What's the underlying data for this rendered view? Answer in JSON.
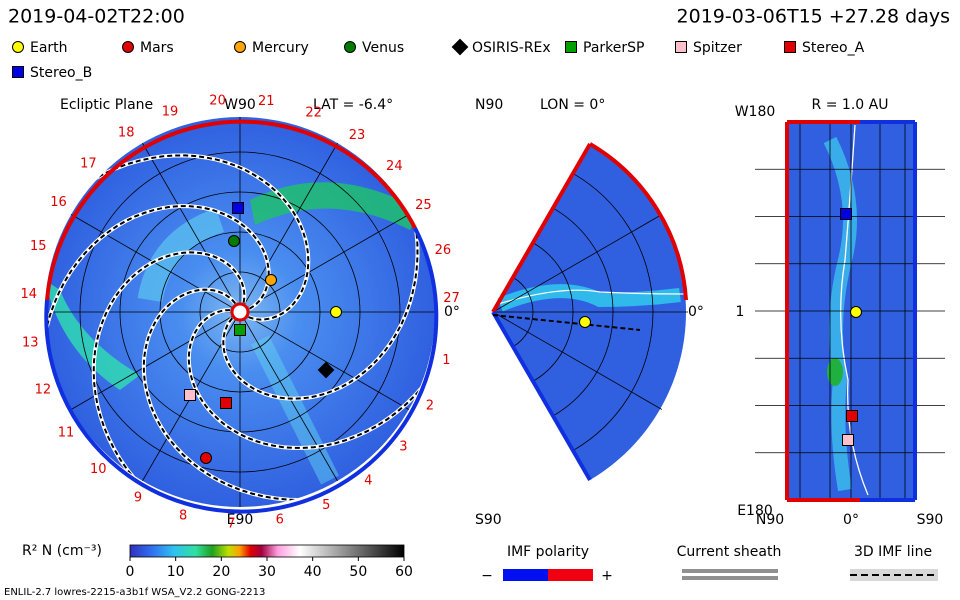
{
  "header": {
    "timestamp": "2019-04-02T22:00",
    "run_time": "2019-03-06T15 +27.28 days"
  },
  "legend": [
    {
      "name": "Earth",
      "color": "#ffff00",
      "shape": "circle"
    },
    {
      "name": "Mars",
      "color": "#e00000",
      "shape": "circle"
    },
    {
      "name": "Mercury",
      "color": "#ffa500",
      "shape": "circle"
    },
    {
      "name": "Venus",
      "color": "#007a00",
      "shape": "circle"
    },
    {
      "name": "OSIRIS-REx",
      "color": "#000000",
      "shape": "diamond"
    },
    {
      "name": "ParkerSP",
      "color": "#00a000",
      "shape": "square"
    },
    {
      "name": "Spitzer",
      "color": "#ffc0cb",
      "shape": "square"
    },
    {
      "name": "Stereo_A",
      "color": "#e00000",
      "shape": "square"
    },
    {
      "name": "Stereo_B",
      "color": "#0000e0",
      "shape": "square"
    }
  ],
  "ecliptic": {
    "title": "Ecliptic Plane",
    "top": "W90",
    "lat": "LAT = -6.4°",
    "bottom": "E90",
    "right": "0°",
    "clock_labels": [
      "1",
      "2",
      "3",
      "4",
      "5",
      "6",
      "7",
      "8",
      "9",
      "10",
      "11",
      "12",
      "13",
      "14",
      "15",
      "16",
      "17",
      "18",
      "19",
      "20",
      "21",
      "22",
      "23",
      "24",
      "25",
      "26",
      "27"
    ]
  },
  "meridional": {
    "top": "N90",
    "lon": "LON = 0°",
    "bottom": "S90",
    "right": "0°"
  },
  "radial": {
    "title": "R = 1.0 AU",
    "top_left": "W180",
    "mid_left": "1",
    "bottom_left": "E180",
    "x_labels": [
      "N90",
      "0°",
      "S90"
    ]
  },
  "colorbar": {
    "label": "R² N (cm⁻³)",
    "lim": [
      0,
      60
    ],
    "ticks": [
      0,
      10,
      20,
      30,
      40,
      50,
      60
    ]
  },
  "keys": {
    "imf_polarity": "IMF polarity",
    "minus": "−",
    "plus": "+",
    "current_sheath": "Current sheath",
    "imf_line": "3D IMF line"
  },
  "footer": "ENLIL-2.7 lowres-2215-a3b1f WSA_V2.2 GONG-2213"
}
